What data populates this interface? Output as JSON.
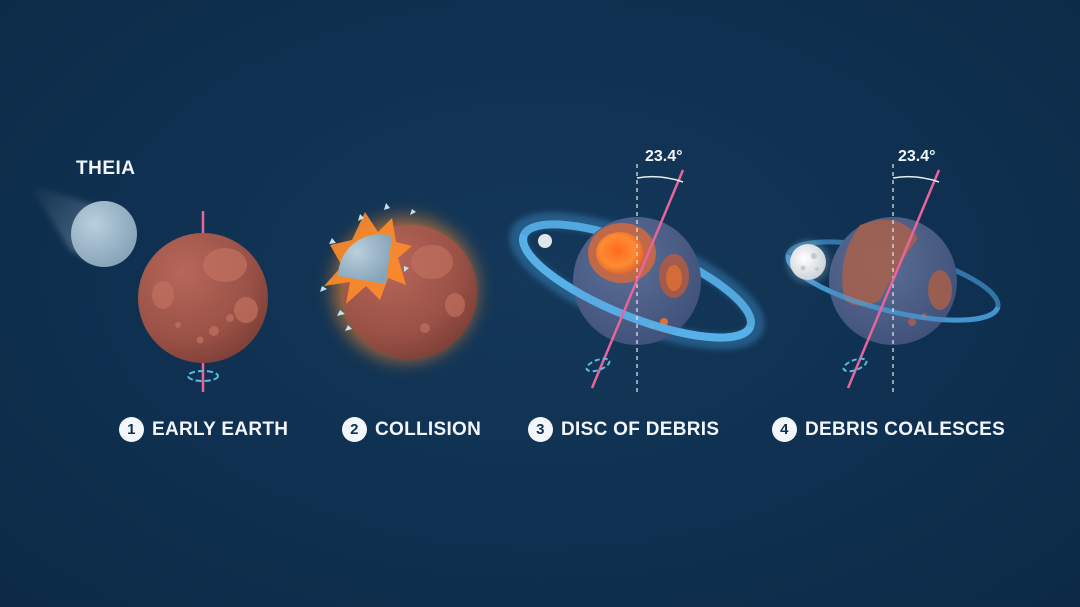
{
  "labels": {
    "theia": "THEIA",
    "angle": "23.4°"
  },
  "stages": [
    {
      "number": "1",
      "label": "EARLY EARTH"
    },
    {
      "number": "2",
      "label": "COLLISION"
    },
    {
      "number": "3",
      "label": "DISC OF DEBRIS"
    },
    {
      "number": "4",
      "label": "DEBRIS COALESCES"
    }
  ],
  "colors": {
    "background": "#0f3050",
    "earth": "#a0554a",
    "theia": "#9fb9cc",
    "impact_glow": "#ff8c2a",
    "debris_disc": "#4aa3e0",
    "magma": "#ff7a2a",
    "spin_axis": "#e8649a",
    "moon": "#e6e9ec"
  }
}
